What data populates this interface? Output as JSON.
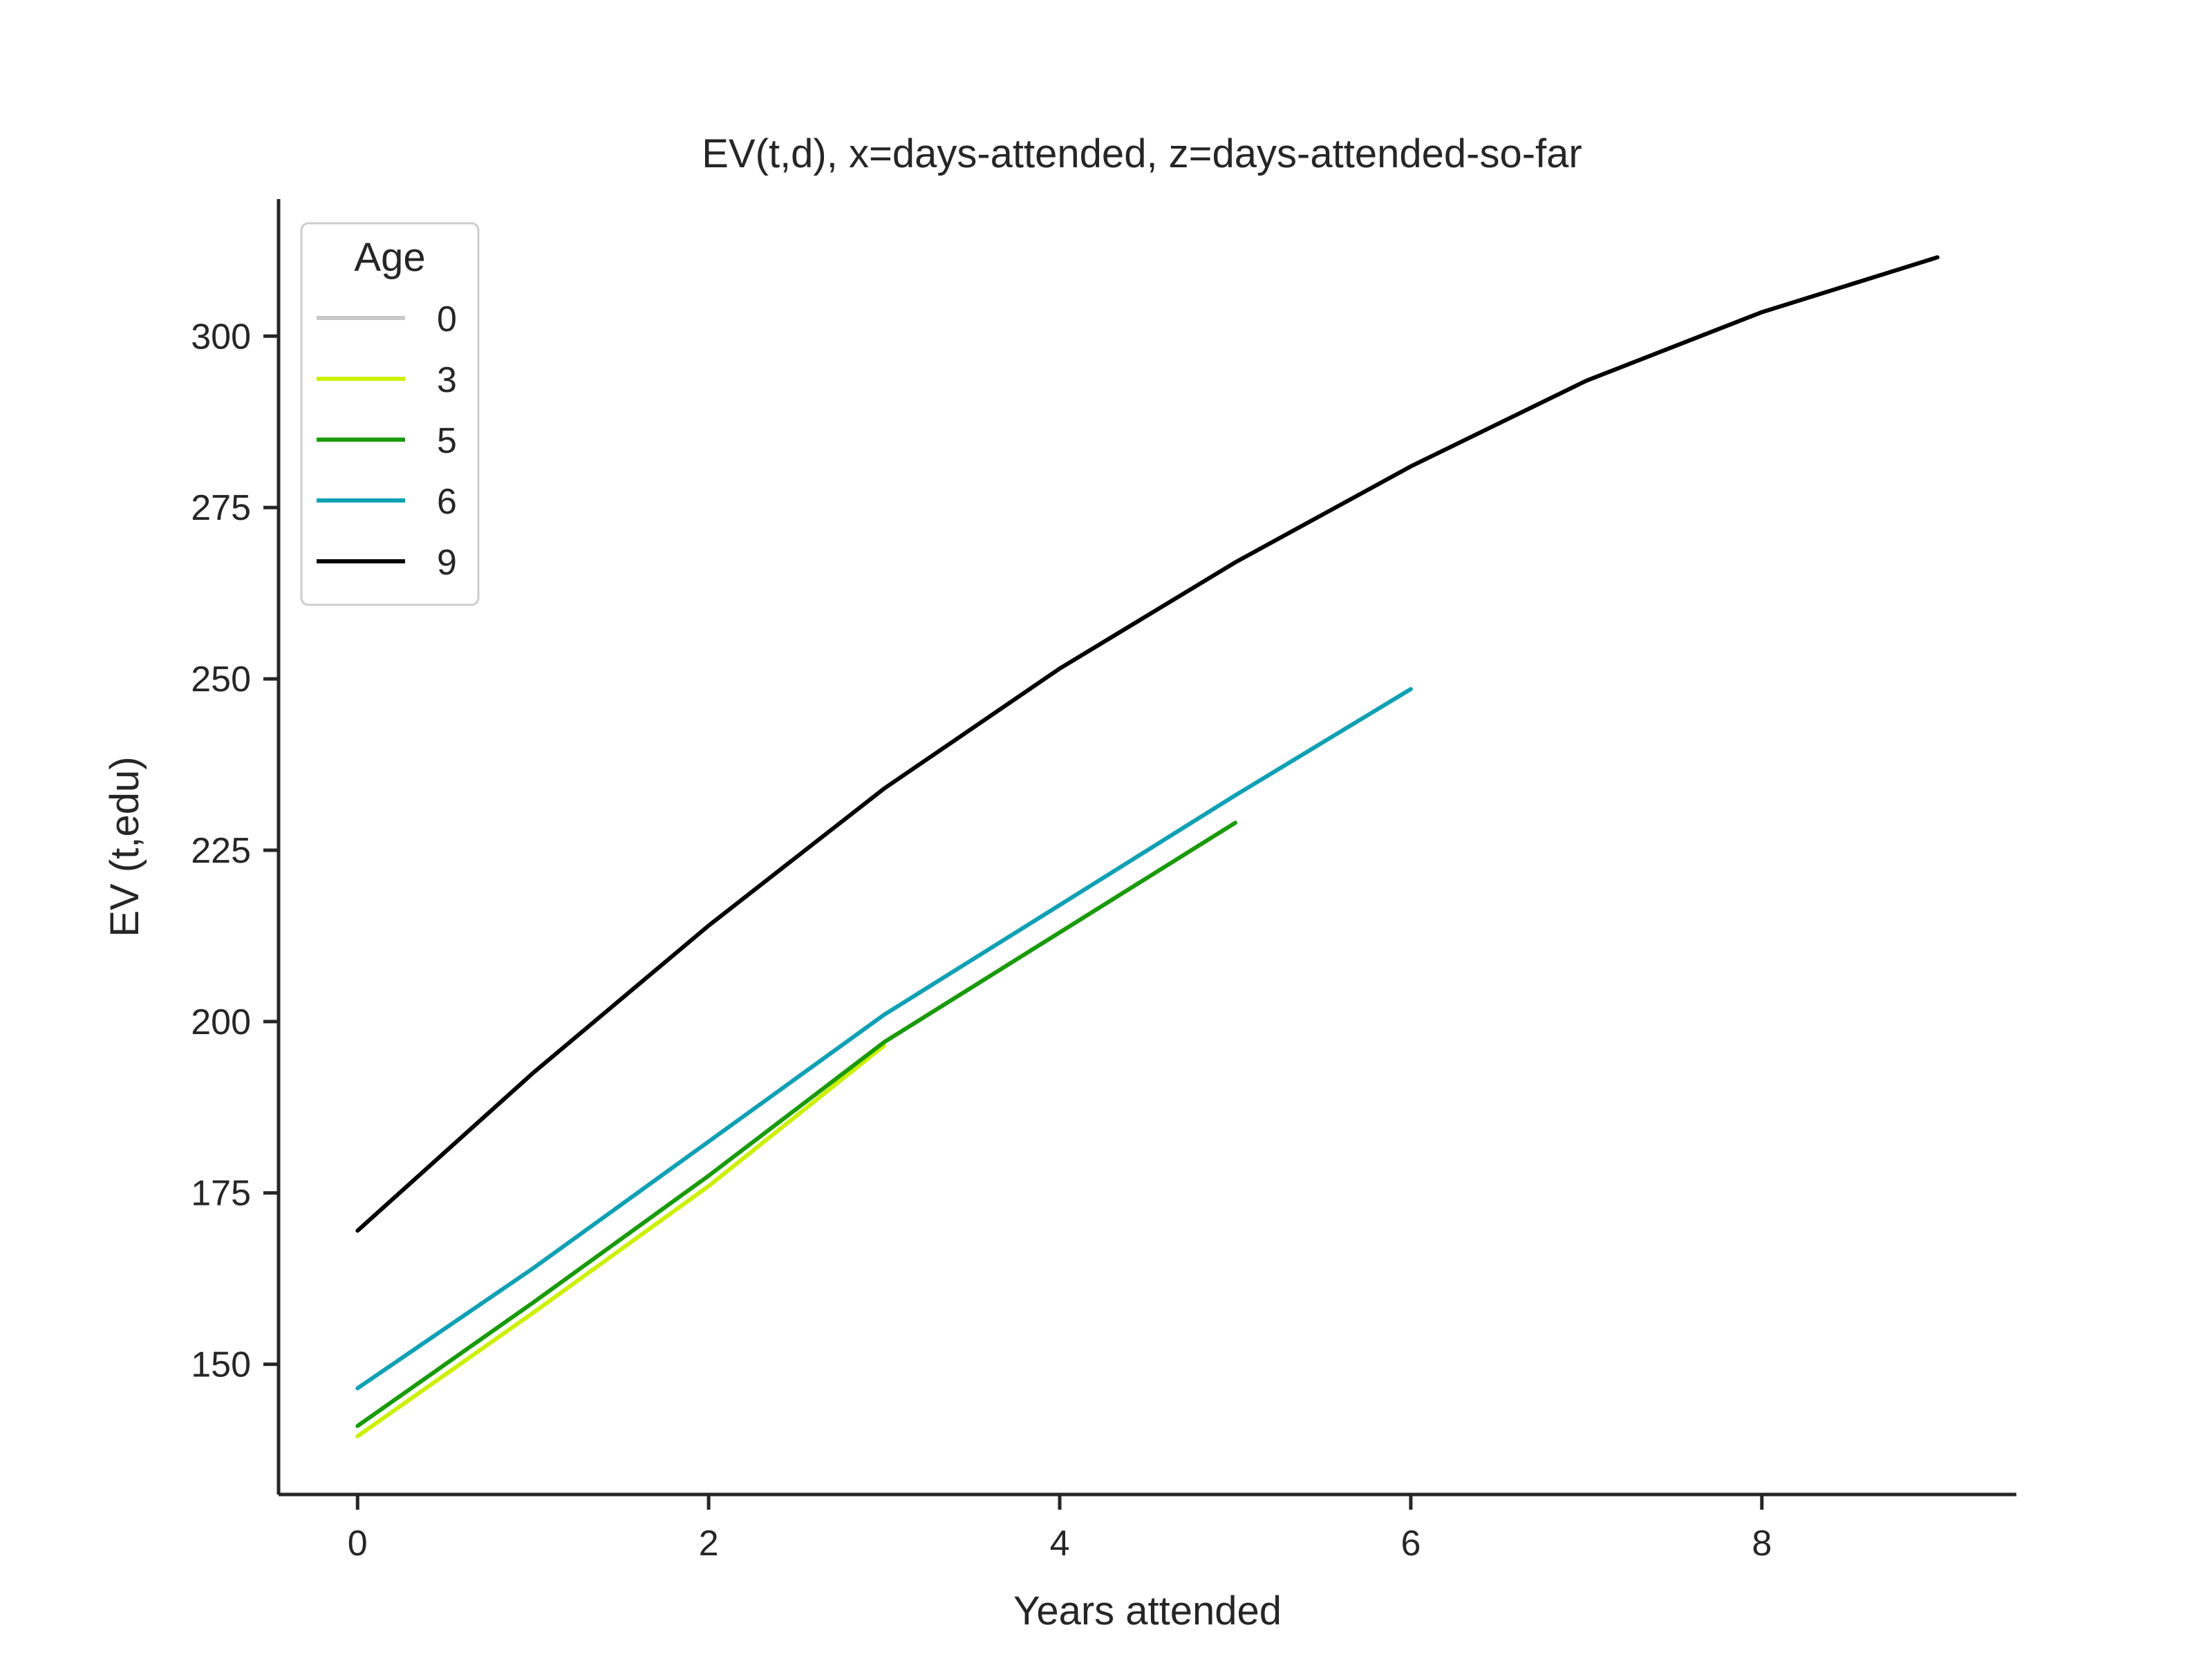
{
  "chart_data": {
    "type": "line",
    "title": "EV(t,d), x=days-attended, z=days-attended-so-far",
    "xlabel": "Years attended",
    "ylabel": "EV (t,edu)",
    "xlim": [
      -0.45,
      9.45
    ],
    "ylim": [
      131,
      320
    ],
    "xticks": [
      0,
      2,
      4,
      6,
      8
    ],
    "yticks": [
      150,
      175,
      200,
      225,
      250,
      275,
      300
    ],
    "grid": false,
    "legend": {
      "title": "Age",
      "placement": "top-left"
    },
    "series": [
      {
        "name": "0",
        "color": "#c8c8c8",
        "x": [],
        "y": []
      },
      {
        "name": "3",
        "color": "#ccf000",
        "x": [
          0,
          1,
          2,
          3
        ],
        "y": [
          139.5,
          157.5,
          176.0,
          196.5
        ]
      },
      {
        "name": "5",
        "color": "#1a9a0a",
        "x": [
          0,
          1,
          2,
          3,
          4,
          5
        ],
        "y": [
          141.0,
          159.0,
          177.5,
          197.0,
          213.0,
          229.0
        ]
      },
      {
        "name": "6",
        "color": "#10a0b4",
        "x": [
          0,
          1,
          2,
          3,
          4,
          5,
          6
        ],
        "y": [
          146.5,
          164.0,
          182.5,
          201.0,
          217.0,
          233.0,
          248.5
        ]
      },
      {
        "name": "9",
        "color": "#000000",
        "x": [
          0,
          1,
          2,
          3,
          4,
          5,
          6,
          7,
          8,
          9
        ],
        "y": [
          169.5,
          192.5,
          214.0,
          234.0,
          251.5,
          267.0,
          281.0,
          293.5,
          303.5,
          311.5
        ]
      }
    ]
  }
}
